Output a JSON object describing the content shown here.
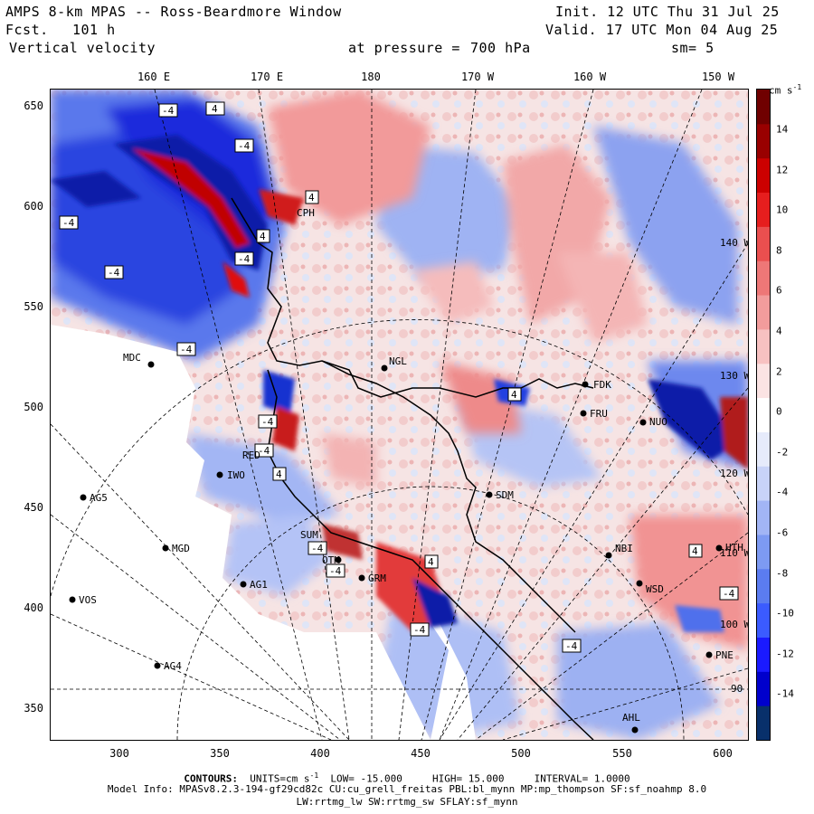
{
  "header": {
    "line1_left": "AMPS 8-km MPAS -- Ross-Beardmore Window",
    "line2_left_a": "Fcst.",
    "line2_left_b": "101 h",
    "line3_left": "Vertical velocity",
    "line1_right": "Init. 12 UTC Thu 31 Jul 25",
    "line2_right": "Valid. 17 UTC Mon 04 Aug 25",
    "pressure_label": "at pressure =",
    "pressure_value": "700 hPa",
    "smoothing": "sm= 5"
  },
  "longitude_labels": [
    "160 E",
    "170 E",
    "180",
    "170 W",
    "160 W",
    "150 W"
  ],
  "y_ticks": [
    "650",
    "600",
    "550",
    "500",
    "450",
    "400",
    "350"
  ],
  "x_ticks": [
    "300",
    "350",
    "400",
    "450",
    "500",
    "550",
    "600"
  ],
  "colorbar": {
    "unit": "cm s",
    "unit_exp": "-1",
    "ticks": [
      "14",
      "12",
      "10",
      "8",
      "6",
      "4",
      "2",
      "0",
      "-2",
      "-4",
      "-6",
      "-8",
      "-10",
      "-12",
      "-14"
    ],
    "colors": [
      "#08306b",
      "#0000cc",
      "#1a1aff",
      "#3b5bff",
      "#5b7cf0",
      "#7d9af2",
      "#a2b5f5",
      "#c8d3f8",
      "#e6ebfb",
      "#ffffff",
      "#fbe3e3",
      "#f7c1c1",
      "#f29c9c",
      "#ee7777",
      "#ea4f4f",
      "#e61e1e",
      "#cc0000",
      "#990000",
      "#700000"
    ]
  },
  "map_lon_labels": [
    "140 W",
    "130 W",
    "120 W",
    "110 W",
    "100 W",
    "90 W"
  ],
  "stations": [
    {
      "name": "MDC"
    },
    {
      "name": "NGL"
    },
    {
      "name": "FDK"
    },
    {
      "name": "FRU"
    },
    {
      "name": "NUO"
    },
    {
      "name": "IWO"
    },
    {
      "name": "AG5"
    },
    {
      "name": "SDM"
    },
    {
      "name": "MGD"
    },
    {
      "name": "NBI"
    },
    {
      "name": "HTH"
    },
    {
      "name": "AG1"
    },
    {
      "name": "GRM"
    },
    {
      "name": "OTM"
    },
    {
      "name": "WSD"
    },
    {
      "name": "VOS"
    },
    {
      "name": "PNE"
    },
    {
      "name": "AG4"
    },
    {
      "name": "AHL"
    },
    {
      "name": "CPH"
    },
    {
      "name": "RED"
    },
    {
      "name": "SUM"
    }
  ],
  "contour_labels": [
    "4",
    "-4",
    "4",
    "-4",
    "-4",
    "-4",
    "4",
    "-4",
    "4",
    "-4",
    "-4",
    "4",
    "4",
    "-4",
    "-4",
    "-4",
    "-4",
    "-4",
    "4",
    "-4"
  ],
  "footer": {
    "contours_label": "CONTOURS:",
    "units_label": "UNITS=cm s",
    "units_exp": "-1",
    "low": "LOW= -15.000",
    "high": "HIGH= 15.000",
    "interval": "INTERVAL= 1.0000",
    "model_info": "Model Info: MPASv8.2.3-194-gf29cd82c CU:cu_grell_freitas PBL:bl_mynn MP:mp_thompson SF:sf_noahmp 8.0",
    "model_info2": "LW:rrtmg_lw SW:rrtmg_sw SFLAY:sf_mynn"
  }
}
